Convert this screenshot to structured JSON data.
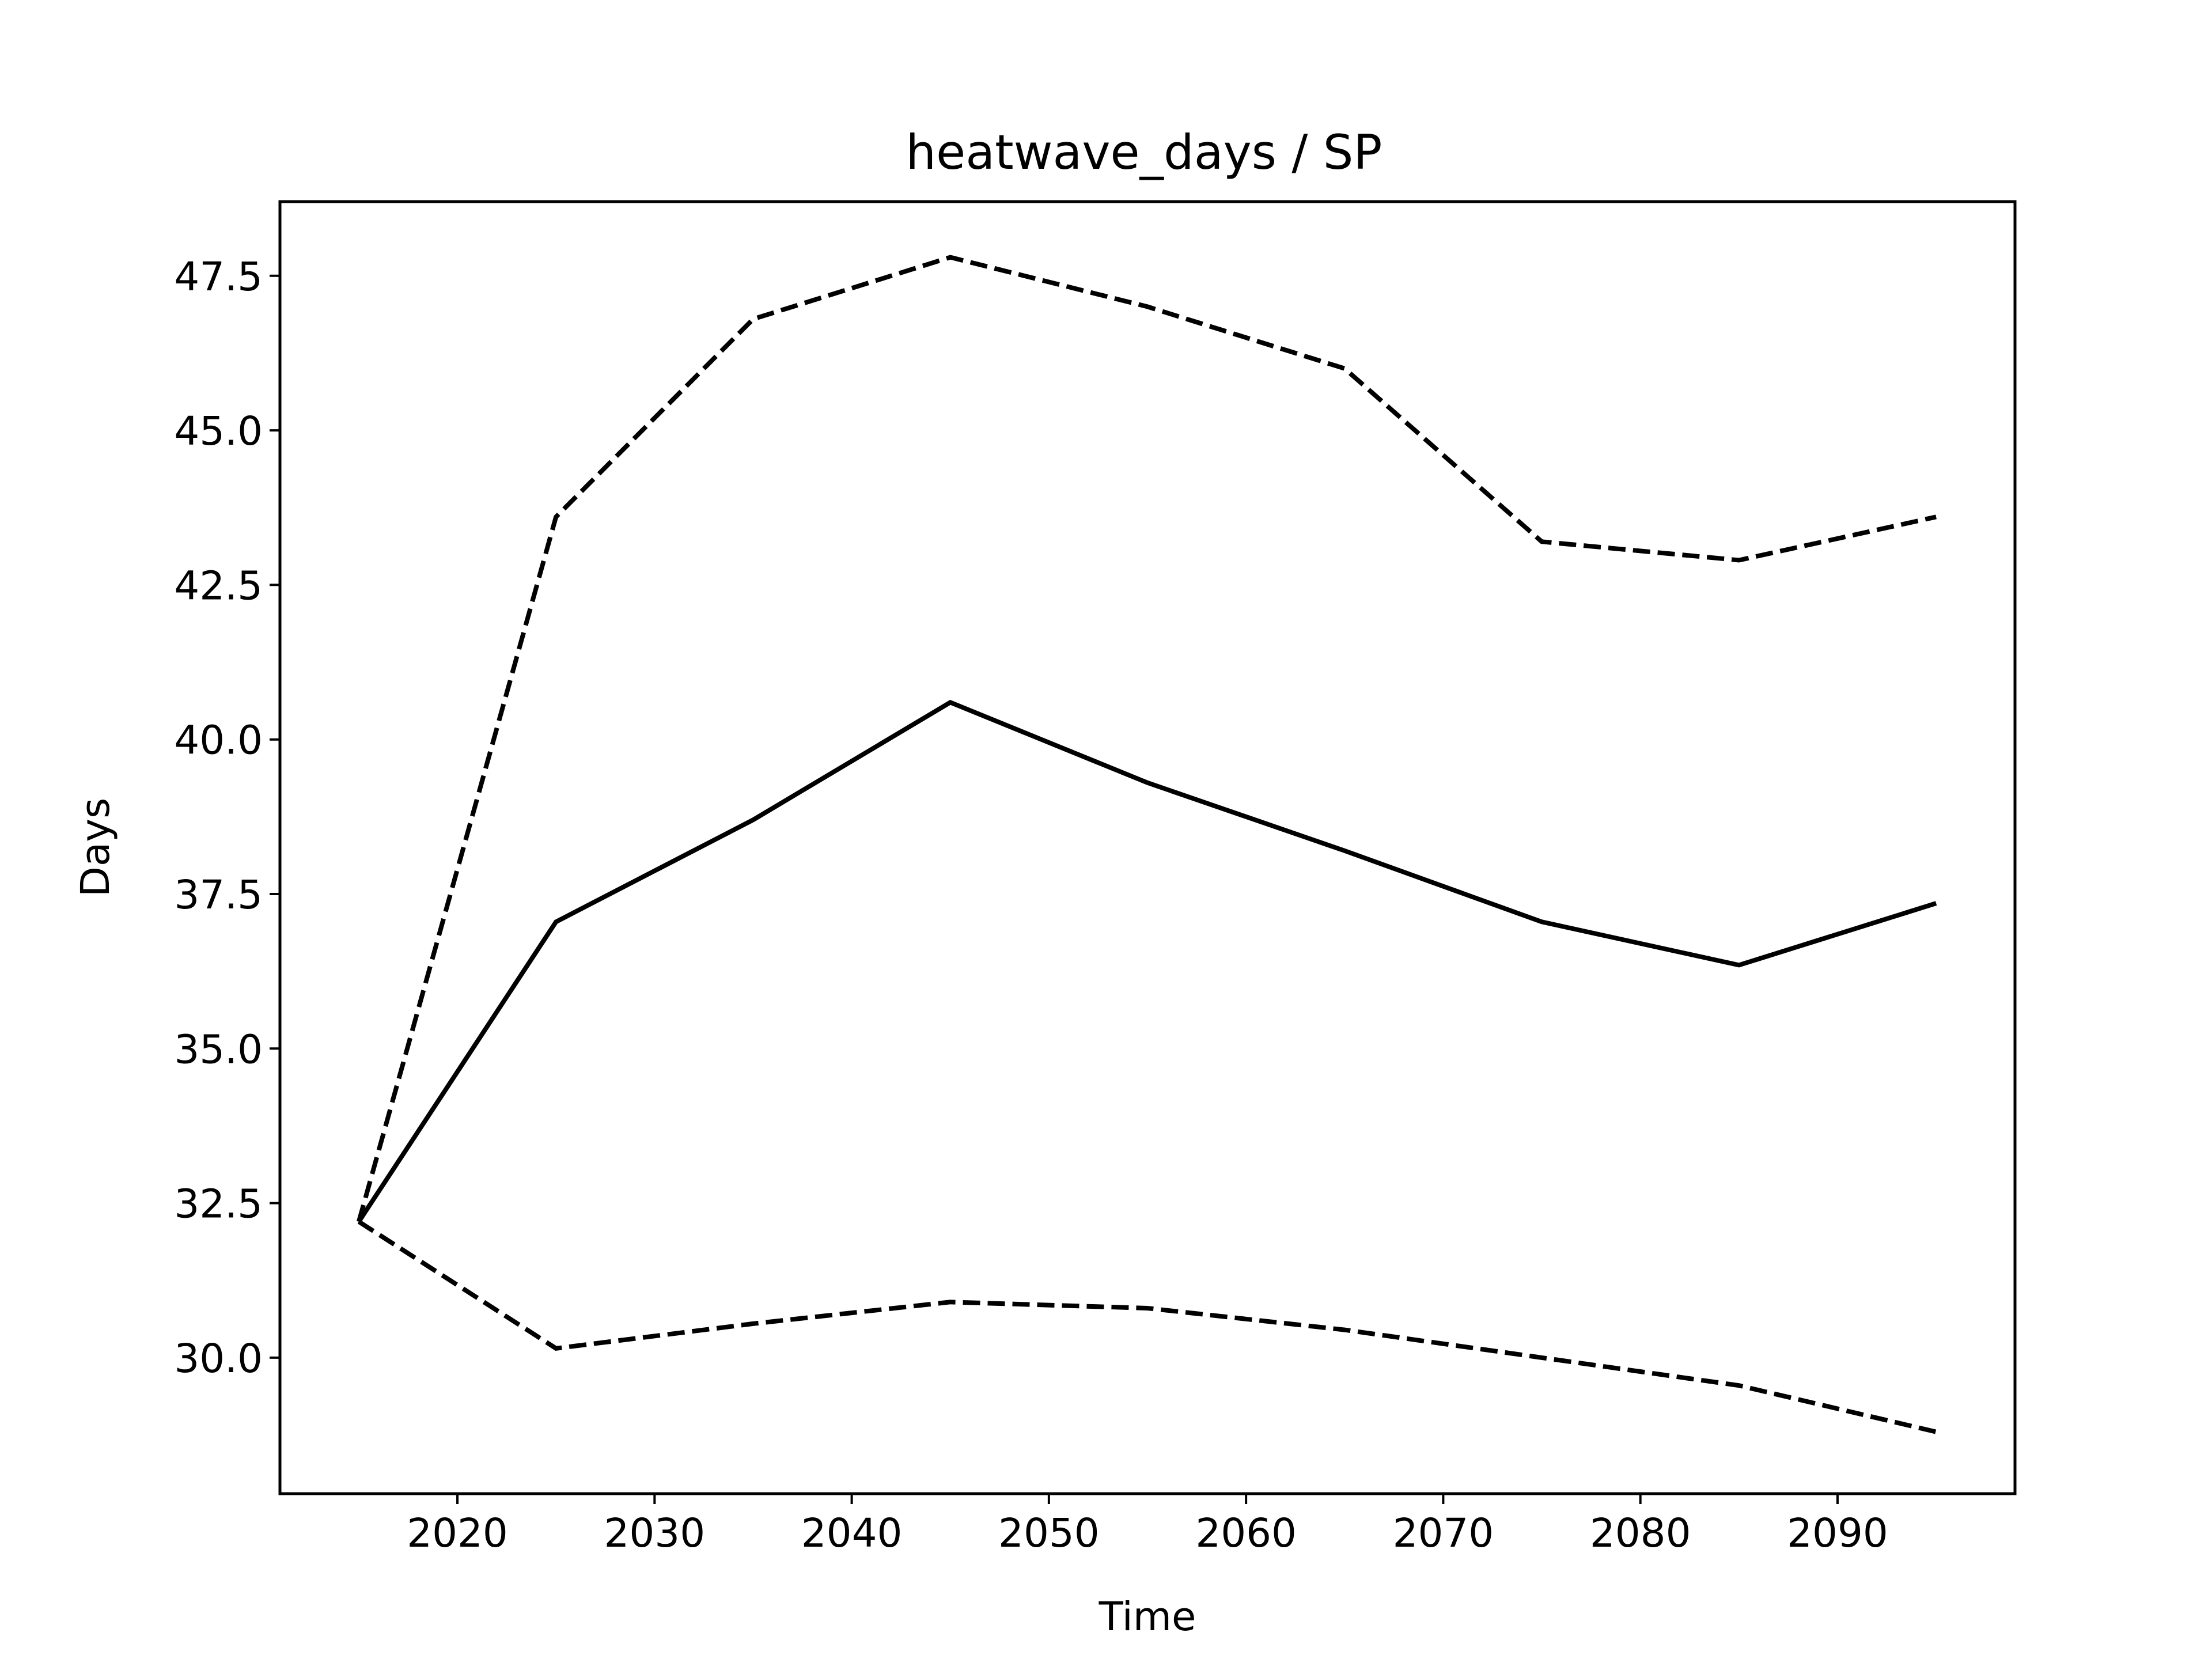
{
  "chart_data": {
    "type": "line",
    "title": "heatwave_days / SP",
    "xlabel": "Time",
    "ylabel": "Days",
    "xlim": [
      2011,
      2099
    ],
    "ylim": [
      27.8,
      48.7
    ],
    "xticks": [
      2020,
      2030,
      2040,
      2050,
      2060,
      2070,
      2080,
      2090
    ],
    "yticks": [
      30.0,
      32.5,
      35.0,
      37.5,
      40.0,
      42.5,
      45.0,
      47.5
    ],
    "xtick_labels": [
      "2020",
      "2030",
      "2040",
      "2050",
      "2060",
      "2070",
      "2080",
      "2090"
    ],
    "ytick_labels": [
      "30.0",
      "32.5",
      "35.0",
      "37.5",
      "40.0",
      "42.5",
      "45.0",
      "47.5"
    ],
    "grid": false,
    "legend": "none",
    "x": [
      2015,
      2025,
      2035,
      2045,
      2055,
      2065,
      2075,
      2085,
      2095
    ],
    "series": [
      {
        "style": "dashed",
        "color": "#000000",
        "values": [
          32.2,
          43.6,
          46.8,
          47.8,
          47.0,
          46.0,
          43.2,
          42.9,
          43.6
        ]
      },
      {
        "style": "solid",
        "color": "#000000",
        "values": [
          32.2,
          37.05,
          38.7,
          40.6,
          39.3,
          38.2,
          37.05,
          36.35,
          37.35
        ]
      },
      {
        "style": "dashed",
        "color": "#000000",
        "values": [
          32.2,
          30.15,
          30.55,
          30.9,
          30.8,
          30.45,
          30.0,
          29.55,
          28.8
        ]
      }
    ]
  }
}
